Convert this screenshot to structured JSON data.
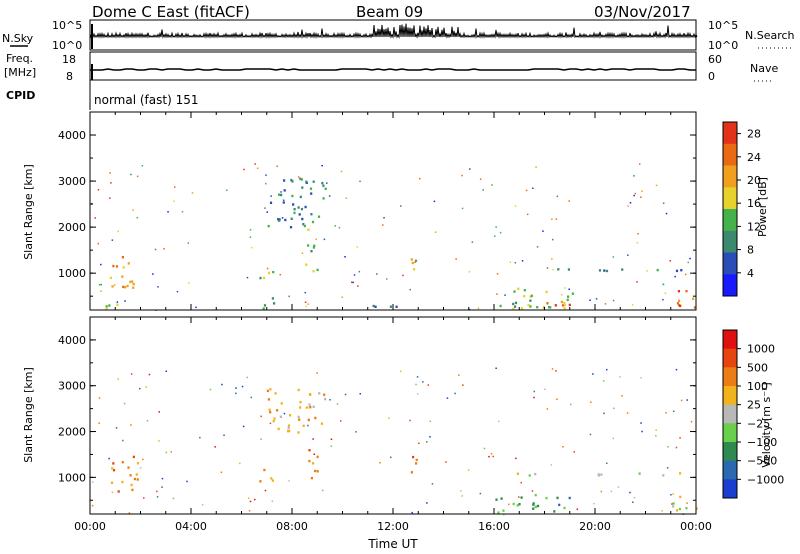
{
  "header": {
    "station": "Dome C East (fitACF)",
    "beam": "Beam 09",
    "date": "03/Nov/2017"
  },
  "summary_panels": {
    "nsky_label": "N.Sky",
    "nsky_ticks": [
      "10^5",
      "10^0"
    ],
    "nsearch_label": "N.Search",
    "nsearch_ticks": [
      "10^5",
      "10^0"
    ],
    "freq_label_1": "Freq.",
    "freq_label_2": "[MHz]",
    "freq_ticks": [
      "18",
      "8"
    ],
    "nave_label": "Nave",
    "nave_ticks": [
      "60",
      "0"
    ],
    "cpid_label": "CPID",
    "cpid_value": "normal (fast) 151"
  },
  "chart_data": [
    {
      "type": "heatmap",
      "quantity": "power",
      "ylabel": "Slant Range [km]",
      "yticks": [
        "1000",
        "2000",
        "3000",
        "4000"
      ],
      "ylim": [
        200,
        4500
      ],
      "xticks": [
        "00:00",
        "04:00",
        "08:00",
        "12:00",
        "16:00",
        "20:00",
        "00:00"
      ],
      "xlim_hours": [
        0,
        24
      ],
      "colorbar_label": "Power [dB]",
      "colorbar_ticks": [
        "4",
        "8",
        "12",
        "16",
        "20",
        "24",
        "28"
      ],
      "colorbar_range": [
        0,
        30
      ],
      "colors": [
        "#1a1aff",
        "#2a4db8",
        "#3c8a6e",
        "#44b24a",
        "#e6d22a",
        "#f0a01e",
        "#ea6a14",
        "#e2321a"
      ],
      "regions": [
        {
          "t0": 0.7,
          "t1": 1.8,
          "r0": 700,
          "r1": 1500,
          "level": 5
        },
        {
          "t0": 0.6,
          "t1": 1.2,
          "r0": 250,
          "r1": 350,
          "level": 4
        },
        {
          "t0": 6.7,
          "t1": 7.3,
          "r0": 900,
          "r1": 1200,
          "level": 3
        },
        {
          "t0": 6.8,
          "t1": 7.3,
          "r0": 250,
          "r1": 500,
          "level": 3
        },
        {
          "t0": 7.0,
          "t1": 9.3,
          "r0": 2000,
          "r1": 3100,
          "level": 2
        },
        {
          "t0": 8.5,
          "t1": 9.0,
          "r0": 1000,
          "r1": 2000,
          "level": 3
        },
        {
          "t0": 10.0,
          "t1": 12.9,
          "r0": 250,
          "r1": 320,
          "level": 2
        },
        {
          "t0": 12.7,
          "t1": 12.9,
          "r0": 1100,
          "r1": 1500,
          "level": 4
        },
        {
          "t0": 16.0,
          "t1": 23.8,
          "r0": 1050,
          "r1": 1120,
          "level": 2
        },
        {
          "t0": 16.0,
          "t1": 19.2,
          "r0": 250,
          "r1": 700,
          "level": 3
        },
        {
          "t0": 17.2,
          "t1": 19.2,
          "r0": 250,
          "r1": 420,
          "level": 6
        },
        {
          "t0": 22.8,
          "t1": 24.0,
          "r0": 250,
          "r1": 650,
          "level": 6
        }
      ]
    },
    {
      "type": "heatmap",
      "quantity": "velocity",
      "ylabel": "Slant Range [km]",
      "yticks": [
        "1000",
        "2000",
        "3000",
        "4000"
      ],
      "ylim": [
        200,
        4500
      ],
      "xticks": [
        "00:00",
        "04:00",
        "08:00",
        "12:00",
        "16:00",
        "20:00",
        "00:00"
      ],
      "xlim_hours": [
        0,
        24
      ],
      "xlabel": "Time UT",
      "colorbar_label": "Velocity [m s⁻¹]",
      "colorbar_ticks": [
        "1000",
        "500",
        "100",
        "25",
        "−25",
        "−100",
        "−500",
        "−1000"
      ],
      "colors": [
        "#1a3fd0",
        "#2a68b0",
        "#2e8a4e",
        "#6ad04a",
        "#b8b8b8",
        "#f0b41a",
        "#ec7d14",
        "#e8440f",
        "#e01010"
      ],
      "regions": [
        {
          "t0": 0.7,
          "t1": 1.9,
          "r0": 700,
          "r1": 1500,
          "level": 6
        },
        {
          "t0": 6.7,
          "t1": 7.3,
          "r0": 900,
          "r1": 1200,
          "level": 6
        },
        {
          "t0": 7.0,
          "t1": 9.3,
          "r0": 2000,
          "r1": 3000,
          "level": 5
        },
        {
          "t0": 8.5,
          "t1": 9.0,
          "r0": 1000,
          "r1": 1800,
          "level": 6
        },
        {
          "t0": 12.7,
          "t1": 12.9,
          "r0": 1100,
          "r1": 1500,
          "level": 6
        },
        {
          "t0": 16.0,
          "t1": 23.8,
          "r0": 1050,
          "r1": 1120,
          "level": 4
        },
        {
          "t0": 16.0,
          "t1": 19.2,
          "r0": 250,
          "r1": 650,
          "level": 2
        },
        {
          "t0": 22.8,
          "t1": 24.0,
          "r0": 250,
          "r1": 600,
          "level": 4
        }
      ]
    }
  ]
}
